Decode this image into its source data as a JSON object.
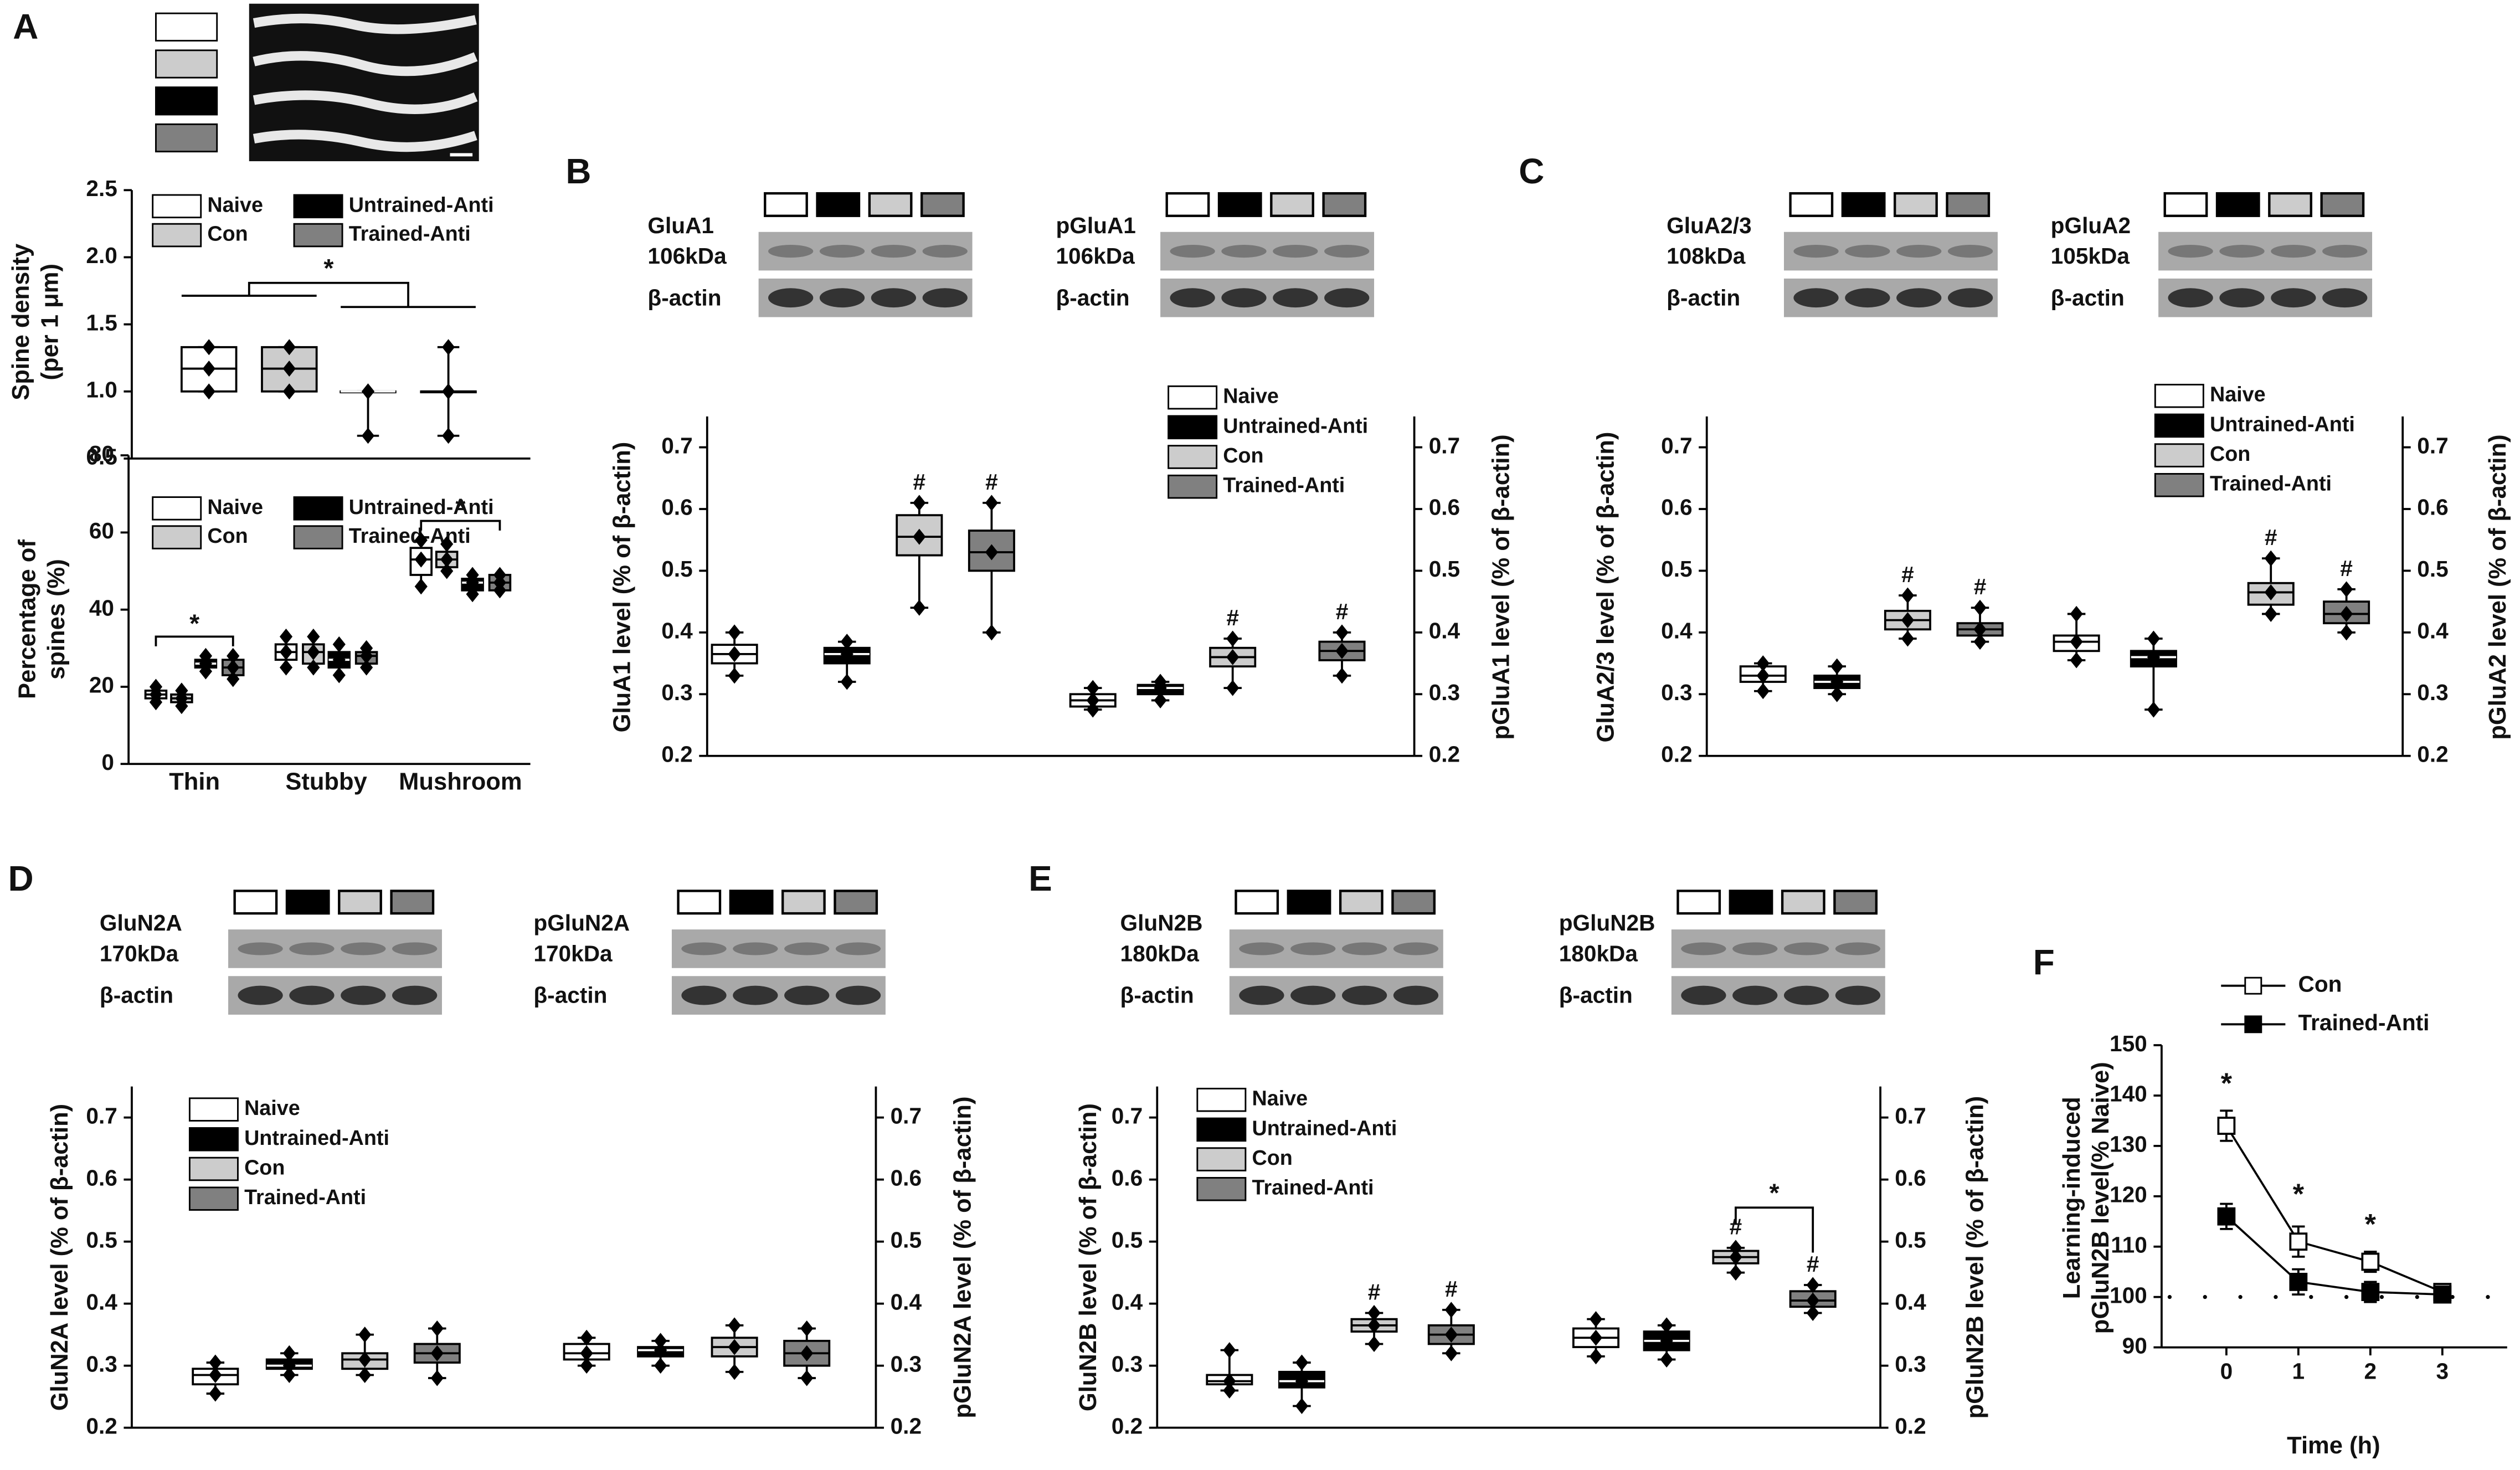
{
  "chart_data": [
    {
      "type": "box",
      "title": "A",
      "ylabel": [
        "Spine density",
        "(per 1 μm)"
      ],
      "ylim": [
        0.5,
        2.5
      ],
      "yticks": [
        0.5,
        {
          "value": 1,
          "label": "1.0"
        },
        1.5,
        {
          "value": 2,
          "label": "2.0"
        },
        2.5
      ],
      "legend": [
        {
          "name": "Naive",
          "color": "#ffffff"
        },
        {
          "name": "Con",
          "color": "#cccccc"
        },
        {
          "name": "Untrained-Anti",
          "color": "#000000"
        },
        {
          "name": "Trained-Anti",
          "color": "#808080"
        }
      ],
      "groups": [
        {
          "note": "*",
          "boxes": [
            {
              "min": 1.0,
              "q1": 1.0,
              "median": 1.17,
              "q3": 1.33,
              "max": 1.33
            },
            {
              "min": 1.0,
              "q1": 1.0,
              "median": 1.17,
              "q3": 1.33,
              "max": 1.33
            },
            {
              "min": 0.67,
              "q1": 1.0,
              "median": 1.0,
              "q3": 1.0,
              "max": 1.0
            },
            {
              "min": 0.67,
              "q1": 1.0,
              "median": 1.0,
              "q3": 1.0,
              "max": 1.33
            }
          ]
        }
      ]
    },
    {
      "type": "box",
      "ylabel": [
        "Percentage of",
        "spines (%)"
      ],
      "ylim": [
        0,
        80
      ],
      "yticks": [
        0,
        20,
        40,
        60,
        80
      ],
      "legend": [
        {
          "name": "Naive",
          "color": "#ffffff"
        },
        {
          "name": "Con",
          "color": "#cccccc"
        },
        {
          "name": "Untrained-Anti",
          "color": "#000000"
        },
        {
          "name": "Trained-Anti",
          "color": "#808080"
        }
      ],
      "groups": [
        {
          "name": "Thin",
          "note": "*",
          "boxes": [
            {
              "min": 16,
              "q1": 17,
              "median": 18,
              "q3": 19,
              "max": 20
            },
            {
              "min": 15,
              "q1": 16,
              "median": 17,
              "q3": 18,
              "max": 19
            },
            {
              "min": 24,
              "q1": 25,
              "median": 26,
              "q3": 27,
              "max": 28
            },
            {
              "min": 22,
              "q1": 23,
              "median": 25,
              "q3": 27,
              "max": 28
            }
          ]
        },
        {
          "name": "Stubby",
          "boxes": [
            {
              "min": 25,
              "q1": 27,
              "median": 29,
              "q3": 31,
              "max": 33
            },
            {
              "min": 25,
              "q1": 26,
              "median": 29,
              "q3": 31,
              "max": 33
            },
            {
              "min": 23,
              "q1": 25,
              "median": 27,
              "q3": 29,
              "max": 31
            },
            {
              "min": 25,
              "q1": 26,
              "median": 28,
              "q3": 29,
              "max": 30
            }
          ]
        },
        {
          "name": "Mushroom",
          "note": "*",
          "boxes": [
            {
              "min": 46,
              "q1": 49,
              "median": 53,
              "q3": 56,
              "max": 58
            },
            {
              "min": 50,
              "q1": 51,
              "median": 53,
              "q3": 55,
              "max": 57
            },
            {
              "min": 44,
              "q1": 45,
              "median": 47,
              "q3": 48,
              "max": 49
            },
            {
              "min": 45,
              "q1": 45,
              "median": 47,
              "q3": 49,
              "max": 49
            }
          ]
        }
      ]
    },
    {
      "type": "box",
      "title": "B",
      "ylabel": [
        "GluA1 level (% of β-actin)"
      ],
      "y2label": "pGluA1 level (% of β-actin)",
      "ylim": [
        0.2,
        0.75
      ],
      "yticks": [
        0.2,
        0.3,
        0.4,
        0.5,
        0.6,
        0.7
      ],
      "y2lim": [
        0.2,
        0.75
      ],
      "y2ticks": [
        0.2,
        0.3,
        0.4,
        0.5,
        0.6,
        0.7
      ],
      "legend": [
        {
          "name": "Naive",
          "color": "#ffffff"
        },
        {
          "name": "Untrained-Anti",
          "color": "#000000"
        },
        {
          "name": "Con",
          "color": "#cccccc"
        },
        {
          "name": "Trained-Anti",
          "color": "#808080"
        }
      ],
      "groups": [
        {
          "protein": "GluA1",
          "kda": "106kDa",
          "control": "β-actin",
          "axis": "y",
          "boxes": [
            {
              "min": 0.33,
              "q1": 0.35,
              "median": 0.365,
              "q3": 0.38,
              "max": 0.4
            },
            {
              "min": 0.32,
              "q1": 0.35,
              "median": 0.365,
              "q3": 0.375,
              "max": 0.385
            },
            {
              "min": 0.44,
              "q1": 0.525,
              "median": 0.555,
              "q3": 0.59,
              "max": 0.61,
              "note": "#"
            },
            {
              "min": 0.4,
              "q1": 0.5,
              "median": 0.53,
              "q3": 0.565,
              "max": 0.61,
              "note": "#"
            }
          ]
        },
        {
          "protein": "pGluA1",
          "kda": "106kDa",
          "control": "β-actin",
          "axis": "y2",
          "boxes": [
            {
              "min": 0.275,
              "q1": 0.28,
              "median": 0.29,
              "q3": 0.3,
              "max": 0.31
            },
            {
              "min": 0.29,
              "q1": 0.3,
              "median": 0.31,
              "q3": 0.315,
              "max": 0.32
            },
            {
              "min": 0.31,
              "q1": 0.345,
              "median": 0.36,
              "q3": 0.375,
              "max": 0.39,
              "note": "#"
            },
            {
              "min": 0.33,
              "q1": 0.355,
              "median": 0.37,
              "q3": 0.385,
              "max": 0.4,
              "note": "#"
            }
          ]
        }
      ]
    },
    {
      "type": "box",
      "title": "C",
      "ylabel": [
        "GluA2/3 level (% of β-actin)"
      ],
      "y2label": "pGluA2 level (% of β-actin)",
      "ylim": [
        0.2,
        0.75
      ],
      "yticks": [
        0.2,
        0.3,
        0.4,
        0.5,
        0.6,
        0.7
      ],
      "y2lim": [
        0.2,
        0.75
      ],
      "y2ticks": [
        0.2,
        0.3,
        0.4,
        0.5,
        0.6,
        0.7
      ],
      "legend": [
        {
          "name": "Naive",
          "color": "#ffffff"
        },
        {
          "name": "Untrained-Anti",
          "color": "#000000"
        },
        {
          "name": "Con",
          "color": "#cccccc"
        },
        {
          "name": "Trained-Anti",
          "color": "#808080"
        }
      ],
      "groups": [
        {
          "protein": "GluA2/3",
          "kda": "108kDa",
          "control": "β-actin",
          "axis": "y",
          "boxes": [
            {
              "min": 0.305,
              "q1": 0.32,
              "median": 0.33,
              "q3": 0.345,
              "max": 0.35
            },
            {
              "min": 0.3,
              "q1": 0.31,
              "median": 0.32,
              "q3": 0.33,
              "max": 0.345
            },
            {
              "min": 0.39,
              "q1": 0.405,
              "median": 0.42,
              "q3": 0.435,
              "max": 0.46,
              "note": "#"
            },
            {
              "min": 0.385,
              "q1": 0.395,
              "median": 0.405,
              "q3": 0.415,
              "max": 0.44,
              "note": "#"
            }
          ]
        },
        {
          "protein": "pGluA2",
          "kda": "105kDa",
          "control": "β-actin",
          "axis": "y2",
          "boxes": [
            {
              "min": 0.355,
              "q1": 0.37,
              "median": 0.385,
              "q3": 0.395,
              "max": 0.43
            },
            {
              "min": 0.275,
              "q1": 0.345,
              "median": 0.36,
              "q3": 0.37,
              "max": 0.39
            },
            {
              "min": 0.43,
              "q1": 0.445,
              "median": 0.465,
              "q3": 0.48,
              "max": 0.52,
              "note": "#"
            },
            {
              "min": 0.4,
              "q1": 0.415,
              "median": 0.43,
              "q3": 0.45,
              "max": 0.47,
              "note": "#"
            }
          ]
        }
      ]
    },
    {
      "type": "box",
      "title": "D",
      "ylabel": [
        "GluN2A level (% of β-actin)"
      ],
      "y2label": "pGluN2A level (% of β-actin)",
      "ylim": [
        0.2,
        0.75
      ],
      "yticks": [
        0.2,
        0.3,
        0.4,
        0.5,
        0.6,
        0.7
      ],
      "y2lim": [
        0.2,
        0.75
      ],
      "y2ticks": [
        0.2,
        0.3,
        0.4,
        0.5,
        0.6,
        0.7
      ],
      "legend": [
        {
          "name": "Naive",
          "color": "#ffffff"
        },
        {
          "name": "Untrained-Anti",
          "color": "#000000"
        },
        {
          "name": "Con",
          "color": "#cccccc"
        },
        {
          "name": "Trained-Anti",
          "color": "#808080"
        }
      ],
      "groups": [
        {
          "protein": "GluN2A",
          "kda": "170kDa",
          "control": "β-actin",
          "axis": "y",
          "boxes": [
            {
              "min": 0.255,
              "q1": 0.27,
              "median": 0.285,
              "q3": 0.295,
              "max": 0.305
            },
            {
              "min": 0.285,
              "q1": 0.295,
              "median": 0.3,
              "q3": 0.31,
              "max": 0.32
            },
            {
              "min": 0.285,
              "q1": 0.295,
              "median": 0.31,
              "q3": 0.32,
              "max": 0.35
            },
            {
              "min": 0.28,
              "q1": 0.305,
              "median": 0.32,
              "q3": 0.335,
              "max": 0.36
            }
          ]
        },
        {
          "protein": "pGluN2A",
          "kda": "170kDa",
          "control": "β-actin",
          "axis": "y2",
          "boxes": [
            {
              "min": 0.3,
              "q1": 0.31,
              "median": 0.32,
              "q3": 0.335,
              "max": 0.345
            },
            {
              "min": 0.3,
              "q1": 0.315,
              "median": 0.325,
              "q3": 0.33,
              "max": 0.34
            },
            {
              "min": 0.29,
              "q1": 0.315,
              "median": 0.33,
              "q3": 0.345,
              "max": 0.365
            },
            {
              "min": 0.28,
              "q1": 0.3,
              "median": 0.32,
              "q3": 0.34,
              "max": 0.36
            }
          ]
        }
      ]
    },
    {
      "type": "box",
      "title": "E",
      "ylabel": [
        "GluN2B level (% of β-actin)"
      ],
      "y2label": "pGluN2B level (% of β-actin)",
      "ylim": [
        0.2,
        0.75
      ],
      "yticks": [
        0.2,
        0.3,
        0.4,
        0.5,
        0.6,
        0.7
      ],
      "y2lim": [
        0.2,
        0.75
      ],
      "y2ticks": [
        0.2,
        0.3,
        0.4,
        0.5,
        0.6,
        0.7
      ],
      "legend": [
        {
          "name": "Naive",
          "color": "#ffffff"
        },
        {
          "name": "Untrained-Anti",
          "color": "#000000"
        },
        {
          "name": "Con",
          "color": "#cccccc"
        },
        {
          "name": "Trained-Anti",
          "color": "#808080"
        }
      ],
      "groups": [
        {
          "protein": "GluN2B",
          "kda": "180kDa",
          "control": "β-actin",
          "axis": "y",
          "boxes": [
            {
              "min": 0.26,
              "q1": 0.27,
              "median": 0.275,
              "q3": 0.285,
              "max": 0.325
            },
            {
              "min": 0.235,
              "q1": 0.265,
              "median": 0.275,
              "q3": 0.29,
              "max": 0.305
            },
            {
              "min": 0.335,
              "q1": 0.355,
              "median": 0.365,
              "q3": 0.375,
              "max": 0.385,
              "note": "#"
            },
            {
              "min": 0.32,
              "q1": 0.335,
              "median": 0.35,
              "q3": 0.365,
              "max": 0.39,
              "note": "#"
            }
          ]
        },
        {
          "protein": "pGluN2B",
          "kda": "180kDa",
          "control": "β-actin",
          "axis": "y2",
          "note": "*",
          "boxes": [
            {
              "min": 0.315,
              "q1": 0.33,
              "median": 0.345,
              "q3": 0.36,
              "max": 0.375
            },
            {
              "min": 0.31,
              "q1": 0.325,
              "median": 0.34,
              "q3": 0.355,
              "max": 0.365
            },
            {
              "min": 0.45,
              "q1": 0.465,
              "median": 0.475,
              "q3": 0.485,
              "max": 0.49,
              "note": "#"
            },
            {
              "min": 0.385,
              "q1": 0.395,
              "median": 0.405,
              "q3": 0.42,
              "max": 0.43,
              "note": "#"
            }
          ]
        }
      ]
    },
    {
      "type": "line",
      "title": "F",
      "ylabel": [
        "Learning-induced",
        "pGluN2B level(% Naive)"
      ],
      "xlabel": "Time (h)",
      "x": [
        0,
        1,
        2,
        3
      ],
      "xlim": [
        -0.9,
        3.9
      ],
      "xticks": [
        0,
        1,
        2,
        3
      ],
      "ylim": [
        90,
        150
      ],
      "yticks": [
        90,
        100,
        110,
        120,
        130,
        140,
        150
      ],
      "reference": 100,
      "series": [
        {
          "name": "Con",
          "color": "#ffffff",
          "values": [
            134,
            111,
            107,
            101
          ],
          "errors": [
            3,
            3,
            2,
            1.5
          ]
        },
        {
          "name": "Trained-Anti",
          "color": "#000000",
          "values": [
            116,
            103,
            101,
            100.5
          ],
          "errors": [
            2.5,
            2.5,
            2,
            1.5
          ]
        }
      ],
      "annotations": [
        {
          "text": "*",
          "x": 0,
          "y": 142
        },
        {
          "text": "*",
          "x": 1,
          "y": 120
        },
        {
          "text": "*",
          "x": 2,
          "y": 114
        }
      ]
    }
  ]
}
